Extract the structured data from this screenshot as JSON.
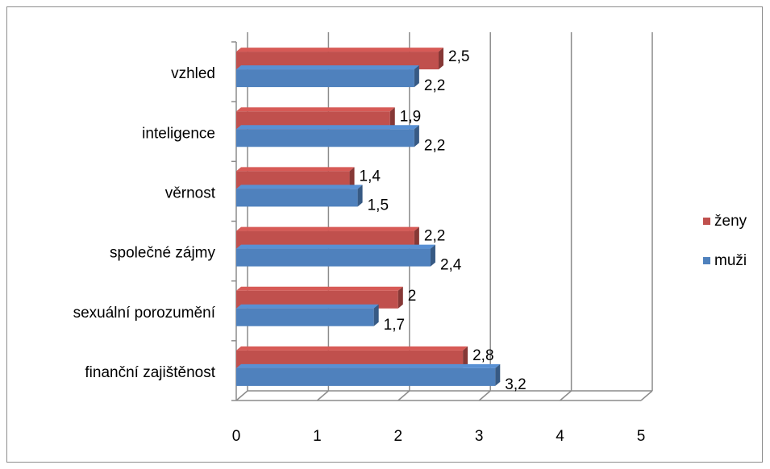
{
  "chart_data": {
    "type": "bar",
    "orientation": "horizontal",
    "style": "3d-clustered",
    "categories": [
      "vzhled",
      "inteligence",
      "věrnost",
      "společné zájmy",
      "sexuální porozumění",
      "finanční zajištěnost"
    ],
    "series": [
      {
        "name": "ženy",
        "color": "#C0504D",
        "values": [
          2.5,
          1.9,
          1.4,
          2.2,
          2,
          2.8
        ],
        "labels": [
          "2,5",
          "1,9",
          "1,4",
          "2,2",
          "2",
          "2,8"
        ]
      },
      {
        "name": "muži",
        "color": "#4F81BD",
        "values": [
          2.2,
          2.2,
          1.5,
          2.4,
          1.7,
          3.2
        ],
        "labels": [
          "2,2",
          "2,2",
          "1,5",
          "2,4",
          "1,7",
          "3,2"
        ]
      }
    ],
    "xlim": [
      0,
      5
    ],
    "xticks": [
      0,
      1,
      2,
      3,
      4,
      5
    ],
    "xtick_labels": [
      "0",
      "1",
      "2",
      "3",
      "4",
      "5"
    ],
    "grid": true,
    "legend_position": "right"
  }
}
